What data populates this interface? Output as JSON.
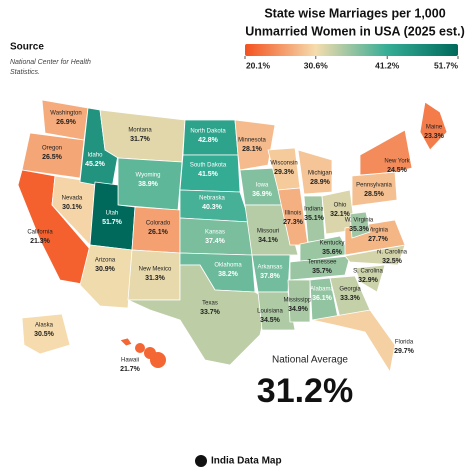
{
  "map": {
    "title": [
      "State wise Marriages per 1,000",
      "Unmarried Women in USA (2025 est.)"
    ],
    "source_heading": "Source",
    "source_text": [
      "National Center for Health",
      "Statistics."
    ],
    "scale": [
      {
        "value": 20.1,
        "label": "20.1%"
      },
      {
        "value": 30.6,
        "label": "30.6%"
      },
      {
        "value": 41.2,
        "label": "41.2%"
      },
      {
        "value": 51.7,
        "label": "51.7%"
      }
    ],
    "scale_colors": [
      "#f4511e",
      "#f5dcae",
      "#36ad95",
      "#00695c"
    ],
    "states": [
      {
        "name": "Washington",
        "value": 26.9,
        "value_label": "26.9%"
      },
      {
        "name": "Oregon",
        "value": 26.5,
        "value_label": "26.5%"
      },
      {
        "name": "California",
        "value": 21.3,
        "value_label": "21.3%"
      },
      {
        "name": "Nevada",
        "value": 30.1,
        "value_label": "30.1%"
      },
      {
        "name": "Idaho",
        "value": 45.2,
        "value_label": "45.2%"
      },
      {
        "name": "Montana",
        "value": 31.7,
        "value_label": "31.7%"
      },
      {
        "name": "Wyoming",
        "value": 38.9,
        "value_label": "38.9%"
      },
      {
        "name": "Utah",
        "value": 51.7,
        "value_label": "51.7%"
      },
      {
        "name": "Arizona",
        "value": 30.9,
        "value_label": "30.9%"
      },
      {
        "name": "Colorado",
        "value": 26.1,
        "value_label": "26.1%"
      },
      {
        "name": "New Mexico",
        "value": 31.3,
        "value_label": "31.3%"
      },
      {
        "name": "North Dakota",
        "value": 42.8,
        "value_label": "42.8%"
      },
      {
        "name": "South Dakota",
        "value": 41.5,
        "value_label": "41.5%"
      },
      {
        "name": "Nebraska",
        "value": 40.3,
        "value_label": "40.3%"
      },
      {
        "name": "Kansas",
        "value": 37.4,
        "value_label": "37.4%"
      },
      {
        "name": "Oklahoma",
        "value": 38.2,
        "value_label": "38.2%"
      },
      {
        "name": "Texas",
        "value": 33.7,
        "value_label": "33.7%"
      },
      {
        "name": "Minnesota",
        "value": 28.1,
        "value_label": "28.1%"
      },
      {
        "name": "Iowa",
        "value": 36.9,
        "value_label": "36.9%"
      },
      {
        "name": "Missouri",
        "value": 34.1,
        "value_label": "34.1%"
      },
      {
        "name": "Arkansas",
        "value": 37.8,
        "value_label": "37.8%"
      },
      {
        "name": "Louisiana",
        "value": 34.5,
        "value_label": "34.5%"
      },
      {
        "name": "Wisconsin",
        "value": 29.3,
        "value_label": "29.3%"
      },
      {
        "name": "Illinois",
        "value": 27.3,
        "value_label": "27.3%"
      },
      {
        "name": "Michigan",
        "value": 28.9,
        "value_label": "28.9%"
      },
      {
        "name": "Indiana",
        "value": 35.1,
        "value_label": "35.1%"
      },
      {
        "name": "Ohio",
        "value": 32.1,
        "value_label": "32.1%"
      },
      {
        "name": "Kentucky",
        "value": 35.6,
        "value_label": "35.6%"
      },
      {
        "name": "Tennessee",
        "value": 35.7,
        "value_label": "35.7%"
      },
      {
        "name": "Mississippi",
        "value": 34.9,
        "value_label": "34.9%"
      },
      {
        "name": "Alabama",
        "value": 36.1,
        "value_label": "36.1%"
      },
      {
        "name": "Georgia",
        "value": 33.3,
        "value_label": "33.3%"
      },
      {
        "name": "Florida",
        "value": 29.7,
        "value_label": "29.7%"
      },
      {
        "name": "S. Carolina",
        "value": 32.9,
        "value_label": "32.9%"
      },
      {
        "name": "N. Carolina",
        "value": 32.5,
        "value_label": "32.5%"
      },
      {
        "name": "Virginia",
        "value": 27.7,
        "value_label": "27.7%"
      },
      {
        "name": "W. Virginia",
        "value": 35.3,
        "value_label": "35.3%"
      },
      {
        "name": "Pennsylvania",
        "value": 28.5,
        "value_label": "28.5%"
      },
      {
        "name": "New York",
        "value": 24.5,
        "value_label": "24.5%"
      },
      {
        "name": "Maine",
        "value": 23.3,
        "value_label": "23.3%"
      },
      {
        "name": "Alaska",
        "value": 30.5,
        "value_label": "30.5%"
      },
      {
        "name": "Hawaii",
        "value": 21.7,
        "value_label": "21.7%"
      }
    ],
    "national_average_label": "National Average",
    "national_average": "31.2%",
    "footer": "India Data Map"
  }
}
